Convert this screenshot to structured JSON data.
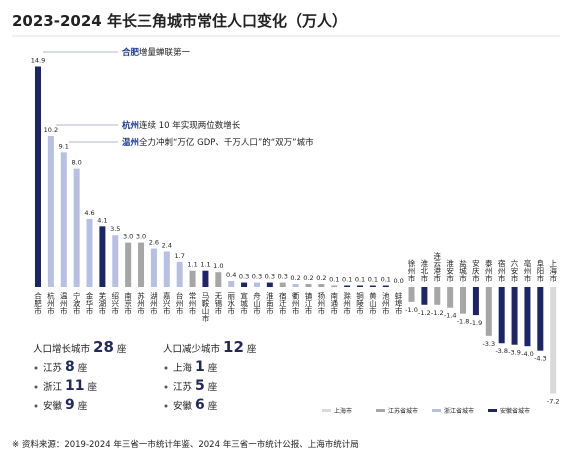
{
  "chart_data": {
    "type": "bar",
    "title": "2023-2024 年长三角城市常住人口变化（万人）",
    "categories": [
      "合肥市",
      "杭州市",
      "温州市",
      "宁波市",
      "金华市",
      "芜湖市",
      "绍兴市",
      "南京市",
      "苏州市",
      "湖州市",
      "嘉兴市",
      "台州市",
      "常州市",
      "马鞍山市",
      "无锡市",
      "丽水市",
      "宣城市",
      "舟山市",
      "淮南市",
      "宿迁市",
      "衢州市",
      "镇江市",
      "扬州市",
      "南通市",
      "滁州市",
      "铜陵市",
      "黄山市",
      "池州市",
      "蚌埠市",
      "徐州市",
      "淮北市",
      "连云港市",
      "淮安市",
      "盐城市",
      "安庆市",
      "泰州市",
      "宿州市",
      "六安市",
      "亳州市",
      "阜阳市",
      "上海市"
    ],
    "values": [
      14.9,
      10.2,
      9.1,
      8.0,
      4.6,
      4.1,
      3.5,
      3.0,
      3.0,
      2.6,
      2.4,
      1.7,
      1.1,
      1.1,
      1.0,
      0.4,
      0.3,
      0.3,
      0.3,
      0.3,
      0.2,
      0.2,
      0.2,
      0.1,
      0.1,
      0.1,
      0.1,
      0.1,
      0.0,
      -1.0,
      -1.2,
      -1.2,
      -1.4,
      -1.8,
      -1.9,
      -3.3,
      -3.8,
      -3.9,
      -4.0,
      -4.3,
      -7.2
    ],
    "value_labels": [
      "14.9",
      "10.2",
      "9.1",
      "8.0",
      "4.6",
      "4.1",
      "3.5",
      "3.0",
      "3.0",
      "2.6",
      "2.4",
      "1.7",
      "1.1",
      "1.1",
      "1.0",
      "0.4",
      "0.3",
      "0.3",
      "0.3",
      "0.3",
      "0.2",
      "0.2",
      "0.2",
      "0.1",
      "0.1",
      "0.1",
      "0.1",
      "0.1",
      "0.0",
      "-1.0",
      "-1.2",
      "-1.2",
      "-1.4",
      "-1.8",
      "-1.9",
      "-3.3",
      "-3.8",
      "-3.9",
      "-4.0",
      "-4.3",
      "-7.2"
    ],
    "colors": [
      "#1c2566",
      "#b7bfe4",
      "#b7bfe4",
      "#b7bfe4",
      "#b7bfe4",
      "#1c2566",
      "#b7bfe4",
      "#a6a6a6",
      "#a6a6a6",
      "#b7bfe4",
      "#b7bfe4",
      "#b7bfe4",
      "#a6a6a6",
      "#1c2566",
      "#a6a6a6",
      "#b7bfe4",
      "#1c2566",
      "#b7bfe4",
      "#1c2566",
      "#a6a6a6",
      "#b7bfe4",
      "#a6a6a6",
      "#a6a6a6",
      "#a6a6a6",
      "#1c2566",
      "#1c2566",
      "#1c2566",
      "#1c2566",
      "#1c2566",
      "#a6a6a6",
      "#1c2566",
      "#a6a6a6",
      "#a6a6a6",
      "#a6a6a6",
      "#1c2566",
      "#a6a6a6",
      "#1c2566",
      "#1c2566",
      "#1c2566",
      "#1c2566",
      "#d9d9d9"
    ],
    "legend": [
      {
        "name": "上海市",
        "color": "#d9d9d9"
      },
      {
        "name": "江苏省城市",
        "color": "#a6a6a6"
      },
      {
        "name": "浙江省城市",
        "color": "#b7bfe4"
      },
      {
        "name": "安徽省城市",
        "color": "#1c2566"
      }
    ],
    "annotations": [
      {
        "highlight": "合肥",
        "text": "增量蝉联第一"
      },
      {
        "highlight": "杭州",
        "text": "连续 10 年实现两位数增长"
      },
      {
        "highlight": "温州",
        "text": "全力冲刺“万亿 GDP、千万人口”的“双万”城市"
      }
    ],
    "summary": [
      {
        "label": "人口增长城市",
        "count": 28,
        "unit": "座",
        "items": [
          {
            "label": "江苏",
            "count": 8,
            "unit": "座"
          },
          {
            "label": "浙江",
            "count": 11,
            "unit": "座"
          },
          {
            "label": "安徽",
            "count": 9,
            "unit": "座"
          }
        ]
      },
      {
        "label": "人口减少城市",
        "count": 12,
        "unit": "座",
        "items": [
          {
            "label": "上海",
            "count": 1,
            "unit": "座"
          },
          {
            "label": "江苏",
            "count": 5,
            "unit": "座"
          },
          {
            "label": "安徽",
            "count": 6,
            "unit": "座"
          }
        ]
      }
    ],
    "source": "※ 资料来源：2019-2024 年三省一市统计年鉴、2024 年三省一市统计公报、上海市统计局"
  }
}
